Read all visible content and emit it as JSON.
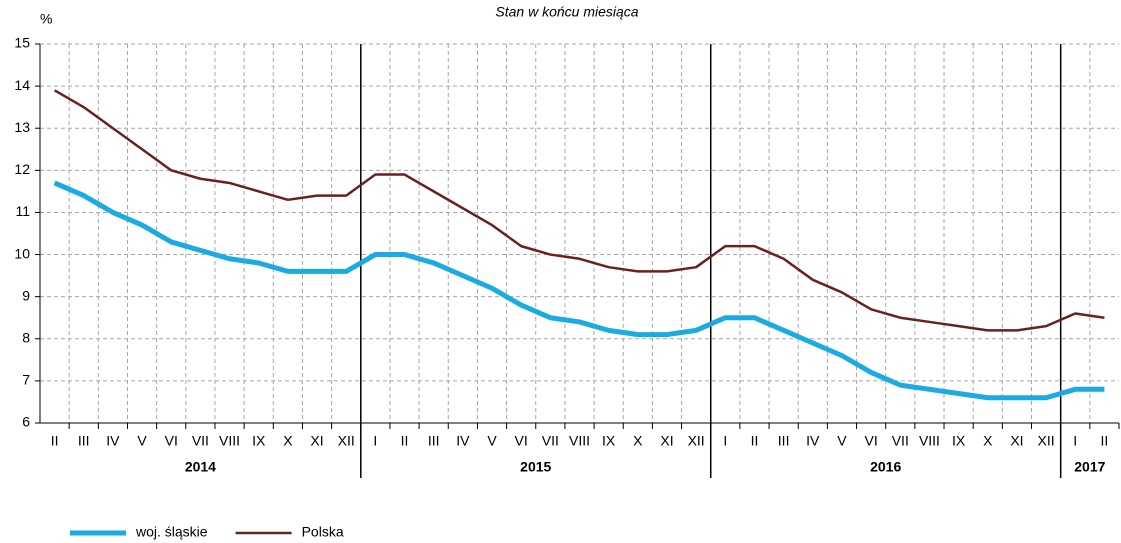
{
  "chart_data": {
    "type": "line",
    "title": "Stan w końcu miesiąca",
    "y_label": "%",
    "categories": [
      "II",
      "III",
      "IV",
      "V",
      "VI",
      "VII",
      "VIII",
      "IX",
      "X",
      "XI",
      "XII",
      "I",
      "II",
      "III",
      "IV",
      "V",
      "VI",
      "VII",
      "VIII",
      "IX",
      "X",
      "XI",
      "XII",
      "I",
      "II",
      "III",
      "IV",
      "V",
      "VI",
      "VII",
      "VIII",
      "IX",
      "X",
      "XI",
      "XII",
      "I",
      "II"
    ],
    "year_groups": [
      {
        "label": "2014",
        "count": 11
      },
      {
        "label": "2015",
        "count": 12
      },
      {
        "label": "2016",
        "count": 12
      },
      {
        "label": "2017",
        "count": 2
      }
    ],
    "series": [
      {
        "name": "woj. śląskie",
        "color": "#1aabe3",
        "width": 5,
        "values": [
          11.7,
          11.4,
          11.0,
          10.7,
          10.3,
          10.1,
          9.9,
          9.8,
          9.6,
          9.6,
          9.6,
          10.0,
          10.0,
          9.8,
          9.5,
          9.2,
          8.8,
          8.5,
          8.4,
          8.2,
          8.1,
          8.1,
          8.2,
          8.5,
          8.5,
          8.2,
          7.9,
          7.6,
          7.2,
          6.9,
          6.8,
          6.7,
          6.6,
          6.6,
          6.6,
          6.8,
          6.8
        ]
      },
      {
        "name": "Polska",
        "color": "#6b2020",
        "width": 2.5,
        "values": [
          13.9,
          13.5,
          13.0,
          12.5,
          12.0,
          11.8,
          11.7,
          11.5,
          11.3,
          11.4,
          11.4,
          11.9,
          11.9,
          11.5,
          11.1,
          10.7,
          10.2,
          10.0,
          9.9,
          9.7,
          9.6,
          9.6,
          9.7,
          10.2,
          10.2,
          9.9,
          9.4,
          9.1,
          8.7,
          8.5,
          8.4,
          8.3,
          8.2,
          8.2,
          8.3,
          8.6,
          8.5
        ]
      }
    ],
    "ylim": [
      6,
      15
    ],
    "yticks": [
      6,
      7,
      8,
      9,
      10,
      11,
      12,
      13,
      14,
      15
    ],
    "grid": true
  }
}
